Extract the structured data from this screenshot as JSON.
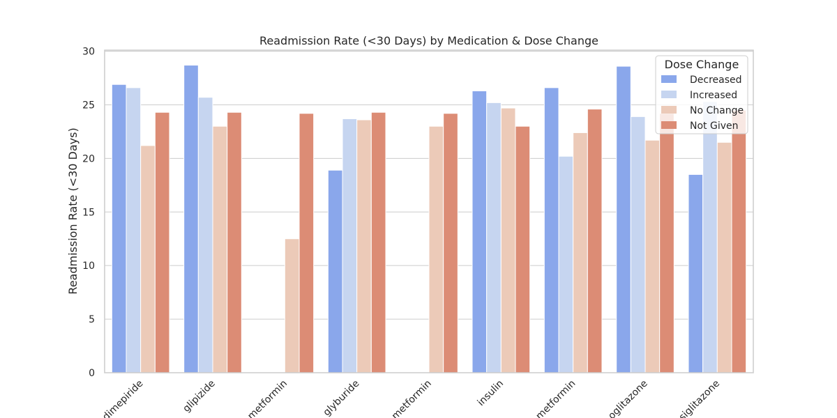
{
  "chart_data": {
    "type": "bar",
    "title": "Readmission Rate (<30 Days) by Medication & Dose Change",
    "xlabel": "",
    "ylabel": "Readmission Rate (<30 Days)",
    "ylim": [
      0,
      30
    ],
    "yticks": [
      0,
      5,
      10,
      15,
      20,
      25,
      30
    ],
    "categories": [
      "glimepiride",
      "glipizide",
      "metformin",
      "glyburide",
      "metformin",
      "insulin",
      "metformin",
      "pioglitazone",
      "rosiglitazone"
    ],
    "category_labels_visible": [
      "dimepiride",
      "glipizide",
      "metformin",
      "glyburide",
      "metformin",
      "insulin",
      "metformin",
      "oglitazone",
      "siglitazone"
    ],
    "series": [
      {
        "name": "Decreased",
        "color": "#8aa7eb",
        "values": [
          26.9,
          28.7,
          null,
          18.9,
          null,
          26.3,
          26.6,
          28.6,
          18.5
        ]
      },
      {
        "name": "Increased",
        "color": "#c6d5f0",
        "values": [
          26.6,
          25.7,
          null,
          23.7,
          null,
          25.2,
          20.2,
          23.9,
          25.3
        ]
      },
      {
        "name": "No Change",
        "color": "#eccab8",
        "values": [
          21.2,
          23.0,
          12.5,
          23.6,
          23.0,
          24.7,
          22.4,
          21.7,
          21.5
        ]
      },
      {
        "name": "Not Given",
        "color": "#dc8c75",
        "values": [
          24.3,
          24.3,
          24.2,
          24.3,
          24.2,
          23.0,
          24.6,
          24.2,
          24.5
        ]
      }
    ],
    "legend": {
      "title": "Dose Change",
      "position": "top-right"
    },
    "grid": true
  }
}
